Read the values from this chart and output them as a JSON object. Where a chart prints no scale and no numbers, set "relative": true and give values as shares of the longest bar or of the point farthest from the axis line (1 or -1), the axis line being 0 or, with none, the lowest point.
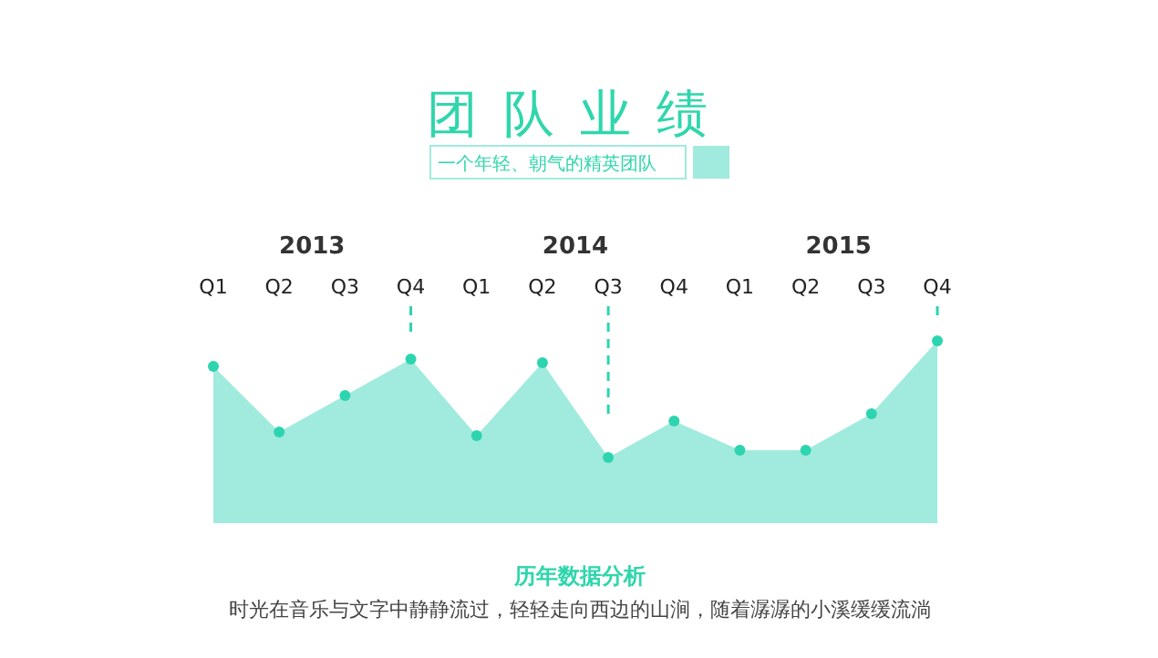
{
  "chart_data": {
    "type": "area",
    "title": "团队业绩",
    "subtitle": "一个年轻、朝气的精英团队",
    "categories": [
      "Q1",
      "Q2",
      "Q3",
      "Q4",
      "Q1",
      "Q2",
      "Q3",
      "Q4",
      "Q1",
      "Q2",
      "Q3",
      "Q4"
    ],
    "relative": true,
    "series": [
      {
        "color": "#a0ebdd",
        "values": [
          0.86,
          0.5,
          0.7,
          0.9,
          0.48,
          0.88,
          0.36,
          0.56,
          0.4,
          0.4,
          0.6,
          1.0
        ]
      }
    ],
    "marker": "circle",
    "annotations": [
      "2013",
      "2014",
      "2015",
      "历年数据分析",
      "时光在音乐与文字中静静流过，轻轻走向西边的山涧，随着潺潺的小溪缓缓流淌"
    ]
  }
}
